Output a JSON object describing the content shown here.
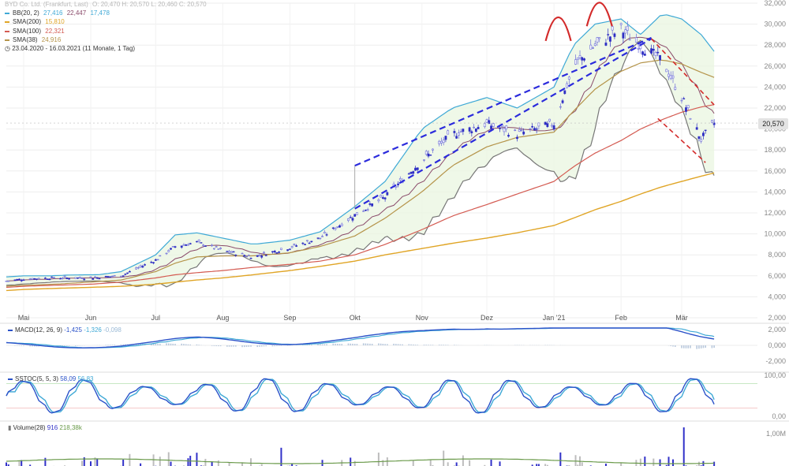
{
  "header": {
    "instrument": "BYD Co. Ltd. (Frankfurt, Last)",
    "ohlc": "O: 20,470  H: 20,570  L: 20,460  C: 20,570",
    "period": "23.04.2020 - 16.03.2021",
    "period_note": "(11 Monate, 1 Tag)"
  },
  "legend": [
    {
      "name": "BB(20, 2)",
      "values": [
        "27,416",
        "22,447",
        "17,478"
      ],
      "color": "#3fa9d6"
    },
    {
      "name": "SMA(200)",
      "values": [
        "15,810"
      ],
      "color": "#e0a526"
    },
    {
      "name": "SMA(100)",
      "values": [
        "22,321"
      ],
      "color": "#d45b52"
    },
    {
      "name": "SMA(38)",
      "values": [
        "24,916"
      ],
      "color": "#b5944a"
    }
  ],
  "colors": {
    "up_candle": "#2e2ec4",
    "down_candle": "#6c6cd8",
    "bb_line": "#3fa9d6",
    "bb_fill": "#e9f5e0",
    "bb_mid": "#8a4a6a",
    "sma200": "#e0a526",
    "sma100": "#d45b52",
    "sma38": "#b5944a",
    "envelope_low": "#777777",
    "channel": "#2b2bdc",
    "head_shoulders": "#d32a2a",
    "breakdown_channel": "#d32a2a",
    "macd": "#2b52c9",
    "signal": "#3fa9d6",
    "stoch_fast": "#2b52c9",
    "stoch_slow": "#3fa9d6",
    "volume_up": "#3131c8",
    "volume_down": "#bdbdbd",
    "volume_avg": "#6a9a4a"
  },
  "last_price_label": "20,570",
  "price_axis": {
    "labels": [
      "32,000",
      "30,000",
      "28,000",
      "26,000",
      "24,000",
      "22,000",
      "20,000",
      "18,000",
      "16,000",
      "14,000",
      "12,000",
      "10,000",
      "8,000",
      "6,000",
      "4,000",
      "2,000"
    ]
  },
  "months": [
    "Mai",
    "Jun",
    "Jul",
    "Aug",
    "Sep",
    "Okt",
    "Nov",
    "Dez",
    "Jan '21",
    "Feb",
    "Mär"
  ],
  "macd": {
    "label": "MACD(12, 26, 9)",
    "values": [
      "-1,425",
      "-1,326",
      "-0,098"
    ],
    "axis": [
      "2,000",
      "0,000",
      "-2,000"
    ]
  },
  "stoch": {
    "label": "SSTOC(5, 5, 3)",
    "values": [
      "58,09",
      "56,83"
    ],
    "axis": [
      "100,00",
      "0,00"
    ]
  },
  "volume": {
    "label": "Volume(28)",
    "values": [
      "916",
      "218,38k"
    ],
    "axis": [
      "1,00M"
    ]
  },
  "chart_data": {
    "type": "line",
    "title": "BYD Co. Ltd. (Frankfurt, Last)",
    "xlabel": "",
    "ylabel": "",
    "ylim": [
      2,
      32
    ],
    "x": [
      "2020-04-23",
      "2020-05-01",
      "2020-05-15",
      "2020-06-01",
      "2020-06-15",
      "2020-07-01",
      "2020-07-10",
      "2020-07-20",
      "2020-08-01",
      "2020-08-15",
      "2020-09-01",
      "2020-09-15",
      "2020-10-01",
      "2020-10-15",
      "2020-11-01",
      "2020-11-15",
      "2020-12-01",
      "2020-12-15",
      "2021-01-01",
      "2021-01-10",
      "2021-01-20",
      "2021-02-01",
      "2021-02-10",
      "2021-02-20",
      "2021-03-01",
      "2021-03-10",
      "2021-03-16"
    ],
    "series": [
      {
        "name": "BYD Co. Ltd. (Frankfurt, Last)",
        "values": [
          5.5,
          5.7,
          5.8,
          5.8,
          6.0,
          7.5,
          8.8,
          9.2,
          8.4,
          7.8,
          8.7,
          9.6,
          11.8,
          13.5,
          17.0,
          19.5,
          20.5,
          19.5,
          20.5,
          26.0,
          28.0,
          29.5,
          28.0,
          26.5,
          23.0,
          19.0,
          20.57
        ]
      },
      {
        "name": "BB(20, 2)",
        "values": [
          5.9,
          6.0,
          6.0,
          6.0,
          6.4,
          8.0,
          9.9,
          10.1,
          9.6,
          9.0,
          9.4,
          10.2,
          12.6,
          15.0,
          20.0,
          22.0,
          23.0,
          22.0,
          24.0,
          28.0,
          30.0,
          30.5,
          29.0,
          31.0,
          30.5,
          29.0,
          27.4
        ]
      },
      {
        "name": "SMA(200)",
        "values": [
          4.6,
          4.7,
          4.8,
          4.9,
          5.0,
          5.2,
          5.4,
          5.6,
          5.8,
          6.1,
          6.5,
          6.9,
          7.4,
          8.0,
          8.6,
          9.1,
          9.6,
          10.1,
          10.8,
          11.5,
          12.3,
          13.1,
          13.8,
          14.5,
          15.0,
          15.5,
          15.81
        ]
      },
      {
        "name": "SMA(100)",
        "values": [
          4.9,
          5.0,
          5.1,
          5.2,
          5.4,
          5.8,
          6.1,
          6.3,
          6.5,
          6.8,
          7.1,
          7.4,
          8.0,
          9.0,
          10.4,
          11.7,
          12.8,
          13.8,
          15.0,
          16.4,
          17.7,
          18.9,
          20.0,
          20.9,
          21.6,
          22.1,
          22.32
        ]
      },
      {
        "name": "SMA(38)",
        "values": [
          5.0,
          5.1,
          5.2,
          5.4,
          5.6,
          6.4,
          7.2,
          7.8,
          7.9,
          7.9,
          8.2,
          8.8,
          9.8,
          11.5,
          14.0,
          16.5,
          18.3,
          19.2,
          19.7,
          21.7,
          23.8,
          25.5,
          26.3,
          26.6,
          26.2,
          25.4,
          24.92
        ]
      }
    ]
  }
}
